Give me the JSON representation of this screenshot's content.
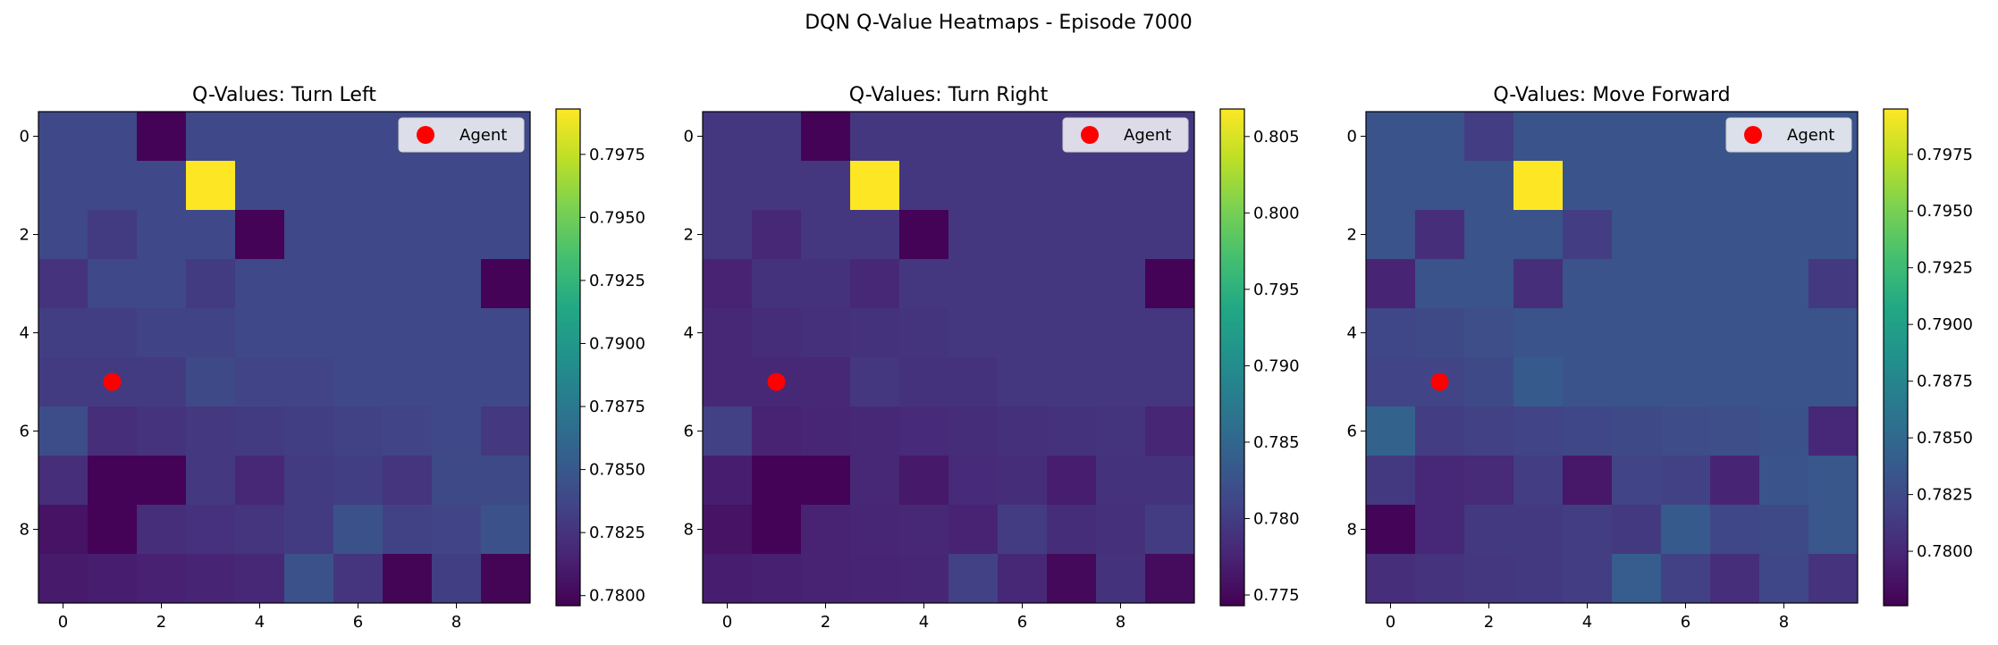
{
  "suptitle": "DQN Q-Value Heatmaps - Episode 7000",
  "colormap": "viridis",
  "agent_marker_color": "#ff0000",
  "chart_data": [
    {
      "type": "heatmap",
      "title": "Q-Values: Turn Left",
      "legend_label": "Agent",
      "legend_position": "upper-right",
      "agent": {
        "x": 1,
        "y": 5
      },
      "x_ticks": [
        "0",
        "2",
        "4",
        "6",
        "8"
      ],
      "y_ticks": [
        "0",
        "2",
        "4",
        "6",
        "8"
      ],
      "vmin": 0.7796,
      "vmax": 0.7993,
      "colorbar_ticks": [
        0.78,
        0.7825,
        0.785,
        0.7875,
        0.79,
        0.7925,
        0.795,
        0.7975
      ],
      "colorbar_tick_labels": [
        "0.7800",
        "0.7825",
        "0.7850",
        "0.7875",
        "0.7900",
        "0.7925",
        "0.7950",
        "0.7975"
      ],
      "grid": [
        [
          0.7838,
          0.7838,
          0.7797,
          0.7838,
          0.7838,
          0.7838,
          0.7838,
          0.7838,
          0.7838,
          0.7838
        ],
        [
          0.7838,
          0.7838,
          0.7838,
          0.7993,
          0.7838,
          0.7838,
          0.7838,
          0.7838,
          0.7838,
          0.7838
        ],
        [
          0.7838,
          0.783,
          0.7838,
          0.7838,
          0.7797,
          0.7838,
          0.7838,
          0.7838,
          0.7838,
          0.7838
        ],
        [
          0.7825,
          0.7838,
          0.7838,
          0.783,
          0.7838,
          0.7838,
          0.7838,
          0.7838,
          0.7838,
          0.7797
        ],
        [
          0.7832,
          0.7832,
          0.7835,
          0.7835,
          0.7838,
          0.7838,
          0.7838,
          0.7838,
          0.7838,
          0.7838
        ],
        [
          0.783,
          0.783,
          0.783,
          0.784,
          0.7836,
          0.7836,
          0.7838,
          0.7838,
          0.7838,
          0.7838
        ],
        [
          0.7842,
          0.7822,
          0.7825,
          0.7828,
          0.783,
          0.7832,
          0.7834,
          0.7836,
          0.7838,
          0.7828
        ],
        [
          0.7822,
          0.7797,
          0.7797,
          0.7828,
          0.7818,
          0.783,
          0.7832,
          0.7826,
          0.784,
          0.784
        ],
        [
          0.7806,
          0.7797,
          0.7822,
          0.7824,
          0.7826,
          0.783,
          0.7845,
          0.7834,
          0.7836,
          0.7845
        ],
        [
          0.781,
          0.7812,
          0.7814,
          0.7816,
          0.7818,
          0.7845,
          0.7826,
          0.7798,
          0.7832,
          0.7798
        ]
      ]
    },
    {
      "type": "heatmap",
      "title": "Q-Values: Turn Right",
      "legend_label": "Agent",
      "legend_position": "upper-right",
      "agent": {
        "x": 1,
        "y": 5
      },
      "x_ticks": [
        "0",
        "2",
        "4",
        "6",
        "8"
      ],
      "y_ticks": [
        "0",
        "2",
        "4",
        "6",
        "8"
      ],
      "vmin": 0.7743,
      "vmax": 0.8068,
      "colorbar_ticks": [
        0.775,
        0.78,
        0.785,
        0.79,
        0.795,
        0.8,
        0.805
      ],
      "colorbar_tick_labels": [
        "0.775",
        "0.780",
        "0.785",
        "0.790",
        "0.795",
        "0.800",
        "0.805"
      ],
      "grid": [
        [
          0.7795,
          0.7795,
          0.7745,
          0.7795,
          0.7795,
          0.7795,
          0.7795,
          0.7795,
          0.7795,
          0.7795
        ],
        [
          0.7795,
          0.7795,
          0.7795,
          0.8068,
          0.7795,
          0.7795,
          0.7795,
          0.7795,
          0.7795,
          0.7795
        ],
        [
          0.7795,
          0.778,
          0.7795,
          0.7795,
          0.7745,
          0.7795,
          0.7795,
          0.7795,
          0.7795,
          0.7795
        ],
        [
          0.7775,
          0.779,
          0.779,
          0.778,
          0.7795,
          0.7795,
          0.7795,
          0.7795,
          0.7795,
          0.7745
        ],
        [
          0.778,
          0.7785,
          0.7788,
          0.779,
          0.7792,
          0.7795,
          0.7795,
          0.7795,
          0.7795,
          0.7795
        ],
        [
          0.778,
          0.778,
          0.778,
          0.7795,
          0.779,
          0.779,
          0.7795,
          0.7795,
          0.7795,
          0.7795
        ],
        [
          0.7805,
          0.7775,
          0.7778,
          0.778,
          0.7782,
          0.7785,
          0.7788,
          0.779,
          0.7792,
          0.7778
        ],
        [
          0.777,
          0.7745,
          0.7745,
          0.778,
          0.7765,
          0.7782,
          0.7785,
          0.777,
          0.779,
          0.779
        ],
        [
          0.776,
          0.7745,
          0.7775,
          0.7778,
          0.778,
          0.7775,
          0.78,
          0.7785,
          0.7788,
          0.78
        ],
        [
          0.777,
          0.7772,
          0.7774,
          0.7776,
          0.7778,
          0.7805,
          0.778,
          0.775,
          0.779,
          0.7752
        ]
      ]
    },
    {
      "type": "heatmap",
      "title": "Q-Values: Move Forward",
      "legend_label": "Agent",
      "legend_position": "upper-right",
      "agent": {
        "x": 1,
        "y": 5
      },
      "x_ticks": [
        "0",
        "2",
        "4",
        "6",
        "8"
      ],
      "y_ticks": [
        "0",
        "2",
        "4",
        "6",
        "8"
      ],
      "vmin": 0.7776,
      "vmax": 0.7995,
      "colorbar_ticks": [
        0.78,
        0.7825,
        0.785,
        0.7875,
        0.79,
        0.7925,
        0.795,
        0.7975
      ],
      "colorbar_tick_labels": [
        "0.7800",
        "0.7825",
        "0.7850",
        "0.7875",
        "0.7900",
        "0.7925",
        "0.7950",
        "0.7975"
      ],
      "grid": [
        [
          0.7832,
          0.7832,
          0.7815,
          0.7832,
          0.7832,
          0.7832,
          0.7832,
          0.7832,
          0.7832,
          0.7832
        ],
        [
          0.7832,
          0.7832,
          0.7832,
          0.7995,
          0.7832,
          0.7832,
          0.7832,
          0.7832,
          0.7832,
          0.7832
        ],
        [
          0.7832,
          0.7805,
          0.7832,
          0.7832,
          0.7815,
          0.7832,
          0.7832,
          0.7832,
          0.7832,
          0.7832
        ],
        [
          0.7798,
          0.7832,
          0.7832,
          0.7805,
          0.7832,
          0.7832,
          0.7832,
          0.7832,
          0.7832,
          0.7812
        ],
        [
          0.7822,
          0.7825,
          0.7828,
          0.7832,
          0.7832,
          0.7832,
          0.7832,
          0.7832,
          0.7832,
          0.7832
        ],
        [
          0.782,
          0.782,
          0.7825,
          0.7838,
          0.7832,
          0.7832,
          0.7832,
          0.7832,
          0.7832,
          0.7832
        ],
        [
          0.7845,
          0.7815,
          0.7818,
          0.782,
          0.7822,
          0.7825,
          0.7826,
          0.7828,
          0.783,
          0.78
        ],
        [
          0.7812,
          0.78,
          0.7802,
          0.7815,
          0.779,
          0.782,
          0.7818,
          0.7798,
          0.7832,
          0.7835
        ],
        [
          0.7778,
          0.78,
          0.7812,
          0.7812,
          0.7815,
          0.7812,
          0.7838,
          0.7822,
          0.7825,
          0.7835
        ],
        [
          0.7805,
          0.7808,
          0.781,
          0.7812,
          0.7815,
          0.784,
          0.7818,
          0.7805,
          0.7822,
          0.7808
        ]
      ]
    }
  ]
}
